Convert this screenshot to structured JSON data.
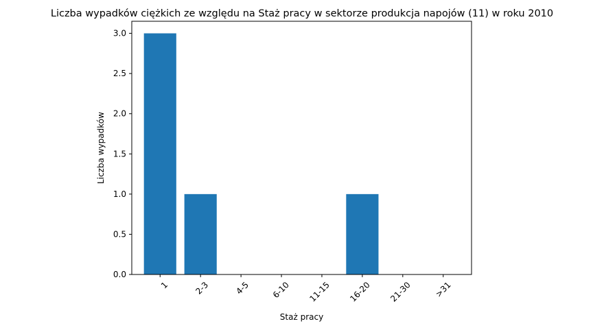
{
  "chart_data": {
    "type": "bar",
    "title": "Liczba wypadków ciężkich ze względu na Staż pracy w sektorze produkcja napojów  (11)   w roku 2010",
    "xlabel": "Staż pracy",
    "ylabel": "Liczba wypadków",
    "categories": [
      "1",
      "2-3",
      "4-5",
      "6-10",
      "11-15",
      "16-20",
      "21-30",
      ">31"
    ],
    "values": [
      3,
      1,
      0,
      0,
      0,
      1,
      0,
      0
    ],
    "ylim": [
      0,
      3.15
    ],
    "yticks": [
      "0.0",
      "0.5",
      "1.0",
      "1.5",
      "2.0",
      "2.5",
      "3.0"
    ],
    "bar_color": "#1f77b4",
    "grid": false,
    "legend": "none"
  }
}
